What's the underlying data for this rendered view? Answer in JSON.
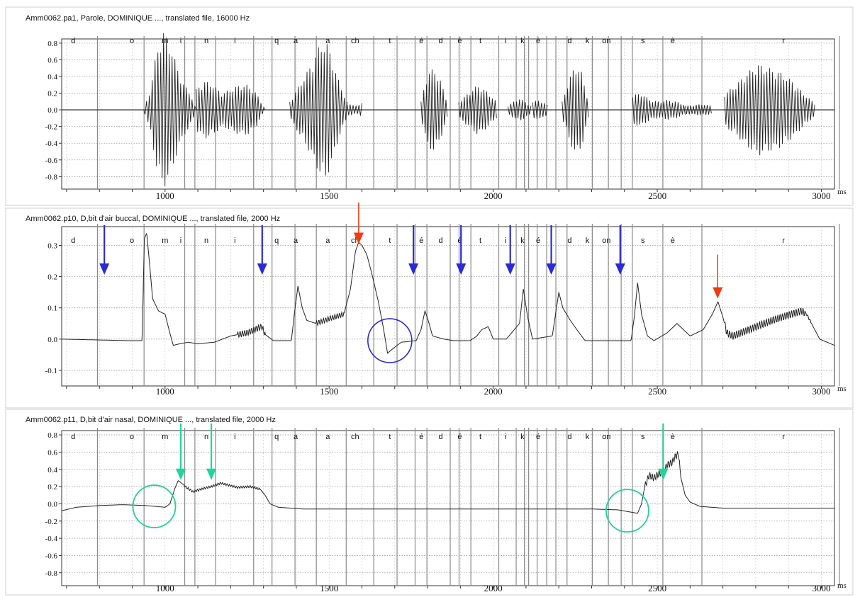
{
  "colors": {
    "blue_arrow": "#2a2ad6",
    "red_arrow": "#f03a12",
    "teal_arrow": "#21d49a",
    "blue_circle": "#2a2ad6",
    "teal_circle": "#21d49a",
    "trace": "#222222",
    "grid": "#9a9a9a"
  },
  "phonemes": [
    {
      "label": "d",
      "t": 720
    },
    {
      "label": "o",
      "t": 899
    },
    {
      "label": "m",
      "t": 1000
    },
    {
      "label": "i",
      "t": 1048
    },
    {
      "label": "n",
      "t": 1126
    },
    {
      "label": "i",
      "t": 1213
    },
    {
      "label": "q",
      "t": 1340
    },
    {
      "label": "a",
      "t": 1398
    },
    {
      "label": "a",
      "t": 1496
    },
    {
      "label": "ch",
      "t": 1579
    },
    {
      "label": "t",
      "t": 1685
    },
    {
      "label": "é",
      "t": 1781
    },
    {
      "label": "d",
      "t": 1840
    },
    {
      "label": "é",
      "t": 1898
    },
    {
      "label": "t",
      "t": 1961
    },
    {
      "label": "i",
      "t": 2038
    },
    {
      "label": "k",
      "t": 2089
    },
    {
      "label": "é",
      "t": 2137
    },
    {
      "label": "d",
      "t": 2233
    },
    {
      "label": "k",
      "t": 2287
    },
    {
      "label": "on",
      "t": 2345
    },
    {
      "label": "s",
      "t": 2456
    },
    {
      "label": "è",
      "t": 2547
    },
    {
      "label": "r",
      "t": 2885
    }
  ],
  "segment_boundaries": [
    794,
    936,
    1060,
    1091,
    1154,
    1270,
    1326,
    1396,
    1461,
    1552,
    1636,
    1707,
    1762,
    1798,
    1869,
    1896,
    1932,
    2017,
    2070,
    2095,
    2108,
    2134,
    2163,
    2191,
    2225,
    2302,
    2351,
    2390,
    2424,
    2517,
    2636,
    3055
  ],
  "chart_data": [
    {
      "type": "line",
      "title": "Amm0062.pa1, Parole, DOMINIQUE ..., translated file, 16000 Hz",
      "xlim": [
        685,
        3040
      ],
      "ylim": [
        -0.95,
        0.85
      ],
      "yticks": [
        0.8,
        0.6,
        0.4,
        0.2,
        0.0,
        -0.2,
        -0.4,
        -0.6,
        -0.8
      ],
      "ytick_labels": [
        "0.8",
        "0.6",
        "0.4",
        "0.2",
        "0.0",
        "-0.2",
        "-0.4",
        "-0.6",
        "-0.8"
      ],
      "xticks": [
        1000,
        1500,
        2000,
        2500,
        3000
      ],
      "xtick_labels": [
        "1000",
        "1500",
        "2000",
        "2500",
        "3000"
      ],
      "x_unit": "ms",
      "grid": true,
      "series": [
        {
          "kind": "waveform",
          "bursts": [
            {
              "t0": 935,
              "t1": 1095,
              "amp": [
                0.0,
                0.25,
                0.72,
                0.95,
                0.8,
                0.55,
                0.32,
                0.22,
                0.0
              ]
            },
            {
              "t0": 1095,
              "t1": 1305,
              "amp": [
                0.25,
                0.35,
                0.3,
                0.2,
                0.25,
                0.3,
                0.3,
                0.2,
                0.0
              ]
            },
            {
              "t0": 1380,
              "t1": 1555,
              "amp": [
                0.1,
                0.25,
                0.4,
                0.55,
                0.75,
                0.85,
                0.6,
                0.3,
                0.1
              ]
            },
            {
              "t0": 1555,
              "t1": 1600,
              "amp": [
                0.08,
                0.05,
                0.08
              ]
            },
            {
              "t0": 1780,
              "t1": 1860,
              "amp": [
                0.1,
                0.45,
                0.5,
                0.35,
                0.1
              ]
            },
            {
              "t0": 1895,
              "t1": 2010,
              "amp": [
                0.1,
                0.2,
                0.3,
                0.22,
                0.1
              ]
            },
            {
              "t0": 2045,
              "t1": 2115,
              "amp": [
                0.05,
                0.1,
                0.14,
                0.1,
                0.05
              ]
            },
            {
              "t0": 2120,
              "t1": 2165,
              "amp": [
                0.1,
                0.12,
                0.06
              ]
            },
            {
              "t0": 2210,
              "t1": 2290,
              "amp": [
                0.1,
                0.35,
                0.55,
                0.45,
                0.1
              ]
            },
            {
              "t0": 2425,
              "t1": 2585,
              "amp": [
                0.18,
                0.2,
                0.12,
                0.1,
                0.12,
                0.1,
                0.06
              ]
            },
            {
              "t0": 2585,
              "t1": 2665,
              "amp": [
                0.05,
                0.06,
                0.07,
                0.05
              ]
            },
            {
              "t0": 2705,
              "t1": 2980,
              "amp": [
                0.2,
                0.3,
                0.45,
                0.55,
                0.5,
                0.45,
                0.35,
                0.2,
                0.08
              ]
            }
          ]
        }
      ]
    },
    {
      "type": "line",
      "title": "Amm0062.p10, D,bit d'air buccal, DOMINIQUE ..., translated file, 2000 Hz",
      "xlim": [
        685,
        3040
      ],
      "ylim": [
        -0.15,
        0.36
      ],
      "yticks": [
        0.3,
        0.2,
        0.1,
        0.0,
        -0.1
      ],
      "ytick_labels": [
        "0.3",
        "0.2",
        "0.1",
        "0.0",
        "-0.1"
      ],
      "xticks": [
        1000,
        1500,
        2000,
        2500,
        3000
      ],
      "xtick_labels": [
        "1000",
        "1500",
        "2000",
        "2500",
        "3000"
      ],
      "x_unit": "ms",
      "grid": true,
      "series": [
        {
          "kind": "airflow",
          "points": [
            [
              685,
              0.0
            ],
            [
              890,
              -0.005
            ],
            [
              930,
              -0.005
            ],
            [
              937,
              0.32
            ],
            [
              944,
              0.34
            ],
            [
              952,
              0.25
            ],
            [
              962,
              0.13
            ],
            [
              980,
              0.09
            ],
            [
              1000,
              0.08
            ],
            [
              1012,
              0.03
            ],
            [
              1025,
              -0.02
            ],
            [
              1045,
              -0.015
            ],
            [
              1070,
              -0.01
            ],
            [
              1100,
              -0.015
            ],
            [
              1150,
              -0.01
            ],
            [
              1200,
              0.01
            ],
            [
              1250,
              0.02
            ],
            [
              1295,
              0.04
            ],
            [
              1305,
              0.015
            ],
            [
              1330,
              -0.005
            ],
            [
              1385,
              -0.005
            ],
            [
              1395,
              0.09
            ],
            [
              1405,
              0.17
            ],
            [
              1418,
              0.1
            ],
            [
              1432,
              0.06
            ],
            [
              1460,
              0.05
            ],
            [
              1500,
              0.065
            ],
            [
              1545,
              0.08
            ],
            [
              1565,
              0.16
            ],
            [
              1580,
              0.28
            ],
            [
              1590,
              0.31
            ],
            [
              1600,
              0.3
            ],
            [
              1615,
              0.27
            ],
            [
              1630,
              0.21
            ],
            [
              1650,
              0.12
            ],
            [
              1668,
              0.02
            ],
            [
              1678,
              -0.045
            ],
            [
              1695,
              -0.03
            ],
            [
              1720,
              -0.01
            ],
            [
              1765,
              -0.005
            ],
            [
              1780,
              0.03
            ],
            [
              1792,
              0.09
            ],
            [
              1802,
              0.06
            ],
            [
              1815,
              0.01
            ],
            [
              1850,
              0.0
            ],
            [
              1880,
              -0.005
            ],
            [
              1930,
              -0.005
            ],
            [
              1950,
              0.01
            ],
            [
              1965,
              0.03
            ],
            [
              1985,
              0.04
            ],
            [
              2000,
              0.0
            ],
            [
              2040,
              0.0
            ],
            [
              2080,
              0.05
            ],
            [
              2092,
              0.16
            ],
            [
              2105,
              0.07
            ],
            [
              2120,
              0.0
            ],
            [
              2180,
              0.01
            ],
            [
              2200,
              0.15
            ],
            [
              2212,
              0.1
            ],
            [
              2235,
              0.06
            ],
            [
              2255,
              0.03
            ],
            [
              2280,
              -0.005
            ],
            [
              2420,
              -0.005
            ],
            [
              2430,
              0.07
            ],
            [
              2440,
              0.18
            ],
            [
              2452,
              0.08
            ],
            [
              2470,
              0.01
            ],
            [
              2490,
              -0.005
            ],
            [
              2530,
              0.02
            ],
            [
              2560,
              0.05
            ],
            [
              2575,
              0.035
            ],
            [
              2600,
              0.01
            ],
            [
              2640,
              0.03
            ],
            [
              2668,
              0.08
            ],
            [
              2685,
              0.12
            ],
            [
              2700,
              0.07
            ],
            [
              2712,
              0.02
            ],
            [
              2730,
              0.01
            ],
            [
              2780,
              0.03
            ],
            [
              2850,
              0.06
            ],
            [
              2940,
              0.09
            ],
            [
              2955,
              0.08
            ],
            [
              2970,
              0.05
            ],
            [
              2995,
              0.0
            ],
            [
              3040,
              -0.02
            ]
          ],
          "ripple": [
            [
              1220,
              1305,
              0.01
            ],
            [
              1460,
              1545,
              0.008
            ],
            [
              2705,
              2950,
              0.012
            ],
            [
              2950,
              2968,
              0.004
            ]
          ]
        }
      ],
      "annotations": {
        "blue_arrows_t": [
          815,
          1296,
          1757,
          1902,
          2052,
          2177,
          2387
        ],
        "red_arrows": [
          {
            "t": 1590,
            "v": 0.3
          },
          {
            "t": 2684,
            "v": 0.125
          }
        ],
        "blue_circle": {
          "t": 1685,
          "v": -0.005
        }
      }
    },
    {
      "type": "line",
      "title": "Amm0062.p11, D,bit d'air nasal, DOMINIQUE ..., translated file, 2000 Hz",
      "xlim": [
        685,
        3040
      ],
      "ylim": [
        -0.95,
        0.85
      ],
      "yticks": [
        0.8,
        0.6,
        0.4,
        0.2,
        0.0,
        -0.2,
        -0.4,
        -0.6,
        -0.8
      ],
      "ytick_labels": [
        "0.8",
        "0.6",
        "0.4",
        "0.2",
        "0.0",
        "-0.2",
        "-0.4",
        "-0.6",
        "-0.8"
      ],
      "xticks": [
        1000,
        1500,
        2000,
        2500,
        3000
      ],
      "xtick_labels": [
        "1000",
        "1500",
        "2000",
        "2500",
        "3000"
      ],
      "x_unit": "ms",
      "grid": true,
      "series": [
        {
          "kind": "airflow",
          "points": [
            [
              685,
              -0.08
            ],
            [
              730,
              -0.04
            ],
            [
              800,
              -0.02
            ],
            [
              870,
              -0.01
            ],
            [
              940,
              -0.02
            ],
            [
              1000,
              -0.04
            ],
            [
              1015,
              0.0
            ],
            [
              1030,
              0.18
            ],
            [
              1040,
              0.27
            ],
            [
              1050,
              0.24
            ],
            [
              1065,
              0.19
            ],
            [
              1085,
              0.14
            ],
            [
              1110,
              0.17
            ],
            [
              1140,
              0.2
            ],
            [
              1170,
              0.24
            ],
            [
              1190,
              0.22
            ],
            [
              1220,
              0.19
            ],
            [
              1260,
              0.2
            ],
            [
              1290,
              0.17
            ],
            [
              1305,
              0.1
            ],
            [
              1320,
              0.0
            ],
            [
              1345,
              -0.04
            ],
            [
              1420,
              -0.06
            ],
            [
              1500,
              -0.06
            ],
            [
              1600,
              -0.06
            ],
            [
              1700,
              -0.06
            ],
            [
              1800,
              -0.06
            ],
            [
              1900,
              -0.06
            ],
            [
              2000,
              -0.06
            ],
            [
              2100,
              -0.06
            ],
            [
              2200,
              -0.06
            ],
            [
              2300,
              -0.06
            ],
            [
              2380,
              -0.07
            ],
            [
              2425,
              -0.1
            ],
            [
              2440,
              -0.11
            ],
            [
              2452,
              0.0
            ],
            [
              2462,
              0.2
            ],
            [
              2475,
              0.33
            ],
            [
              2490,
              0.3
            ],
            [
              2505,
              0.35
            ],
            [
              2520,
              0.38
            ],
            [
              2530,
              0.45
            ],
            [
              2545,
              0.48
            ],
            [
              2555,
              0.55
            ],
            [
              2565,
              0.58
            ],
            [
              2572,
              0.3
            ],
            [
              2585,
              0.1
            ],
            [
              2600,
              0.02
            ],
            [
              2630,
              -0.03
            ],
            [
              2700,
              -0.05
            ],
            [
              2800,
              -0.05
            ],
            [
              3040,
              -0.05
            ]
          ],
          "ripple": [
            [
              1055,
              1290,
              0.012
            ],
            [
              2462,
              2568,
              0.04
            ]
          ]
        }
      ],
      "annotations": {
        "teal_arrows_t": [
          1048,
          1141,
          2518
        ],
        "teal_circles": [
          {
            "t": 967,
            "v": -0.03
          },
          {
            "t": 2409,
            "v": -0.08
          }
        ]
      }
    }
  ]
}
